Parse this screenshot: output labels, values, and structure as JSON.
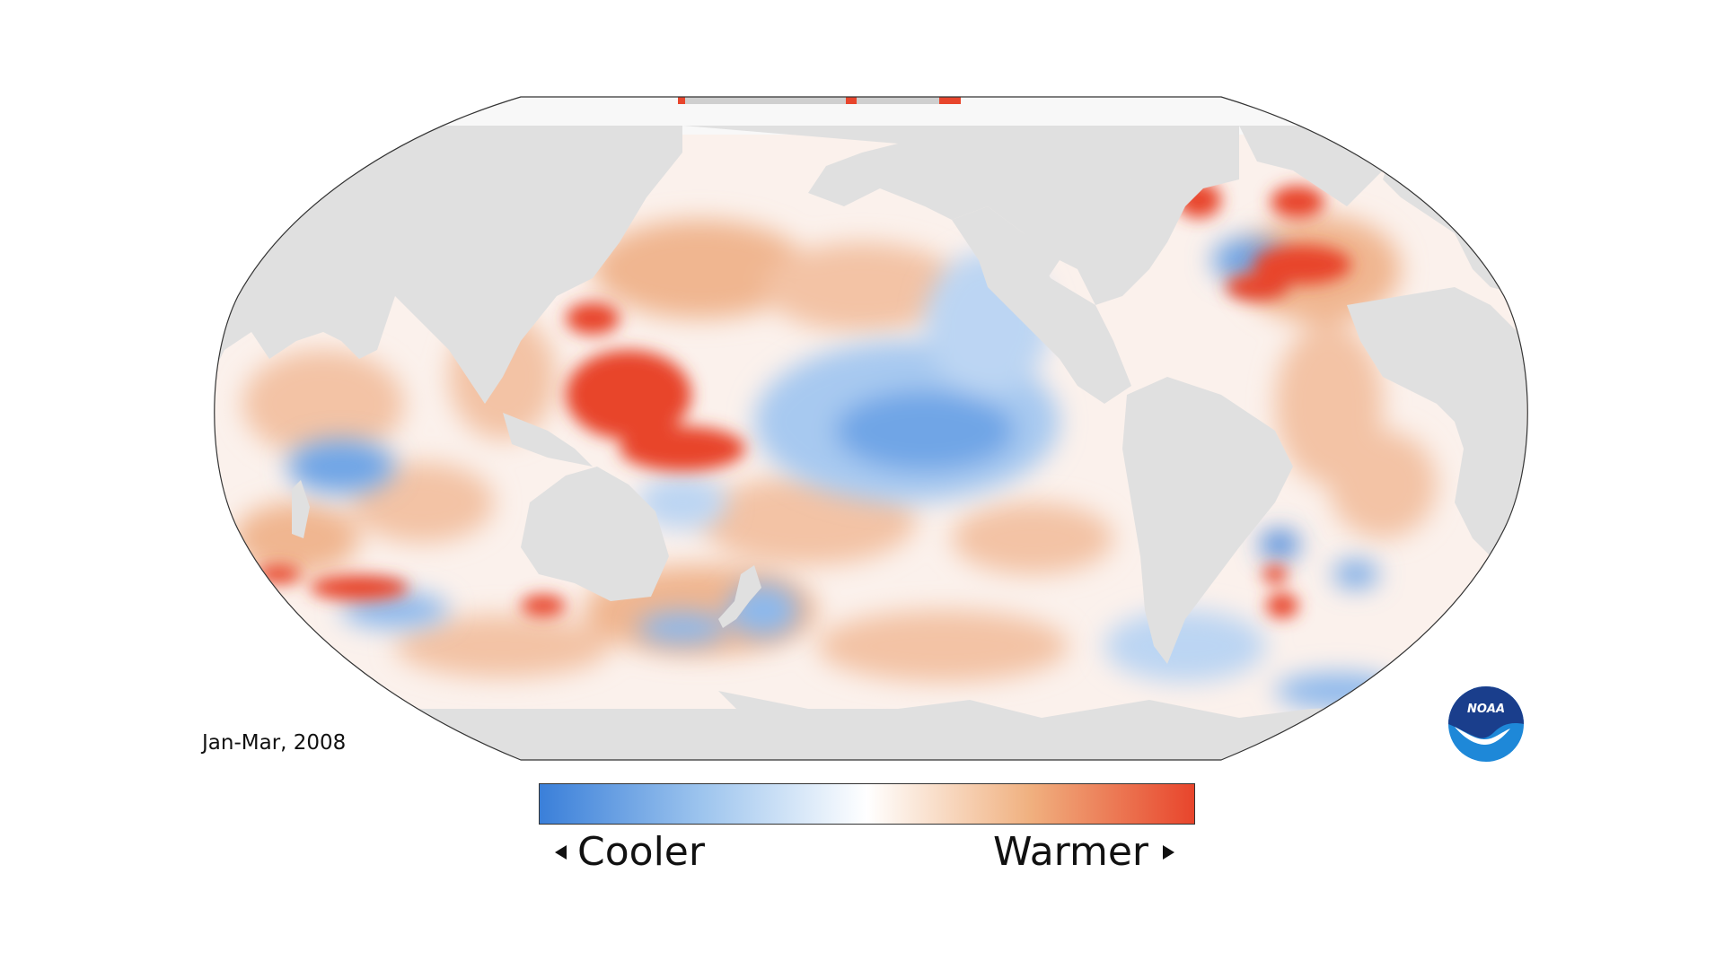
{
  "map": {
    "period_label": "Jan-Mar, 2008",
    "projection": "robinson-pacific-centered",
    "land_color": "#e0e0e0",
    "sea_ice_color": "#f8f8f8",
    "outline_color": "#333333",
    "anomaly_colors": {
      "strong_cool": "#3a7fd9",
      "mild_cool": "#cfe2f6",
      "neutral": "#ffffff",
      "mild_warm": "#f0bc9a",
      "strong_warm": "#e8452c"
    }
  },
  "legend": {
    "cooler_label": "Cooler",
    "warmer_label": "Warmer",
    "gradient": [
      "#3a7fd9",
      "#9ec5ee",
      "#ffffff",
      "#f0b07f",
      "#e8452c"
    ]
  },
  "logo": {
    "text": "NOAA",
    "icon": "noaa-logo-icon",
    "colors": {
      "dark": "#1a3e8c",
      "light": "#1e88d8"
    }
  }
}
